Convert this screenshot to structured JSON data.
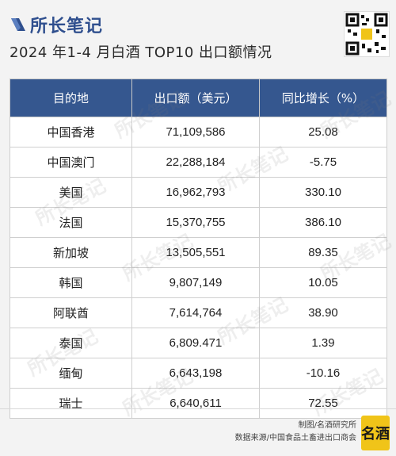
{
  "brand": {
    "name": "所长笔记"
  },
  "title": "2024 年1-4 月白酒 TOP10 出口额情况",
  "table": {
    "headers": [
      "目的地",
      "出口额（美元）",
      "同比增长（%）"
    ],
    "rows": [
      [
        "中国香港",
        "71,109,586",
        "25.08"
      ],
      [
        "中国澳门",
        "22,288,184",
        "-5.75"
      ],
      [
        "美国",
        "16,962,793",
        "330.10"
      ],
      [
        "法国",
        "15,370,755",
        "386.10"
      ],
      [
        "新加坡",
        "13,505,551",
        "89.35"
      ],
      [
        "韩国",
        "9,807,149",
        "10.05"
      ],
      [
        "阿联酋",
        "7,614,764",
        "38.90"
      ],
      [
        "泰国",
        "6,809.471",
        "1.39"
      ],
      [
        "缅甸",
        "6,643,198",
        "-10.16"
      ],
      [
        "瑞士",
        "6,640,611",
        "72.55"
      ]
    ]
  },
  "footer": {
    "producer": "制图/名酒研究所",
    "source": "数据来源/中国食品土畜进出口商会"
  },
  "seal_text": "名酒",
  "colors": {
    "header_bg": "#35578f",
    "brand": "#2f4f8e",
    "seal": "#f0c419"
  }
}
